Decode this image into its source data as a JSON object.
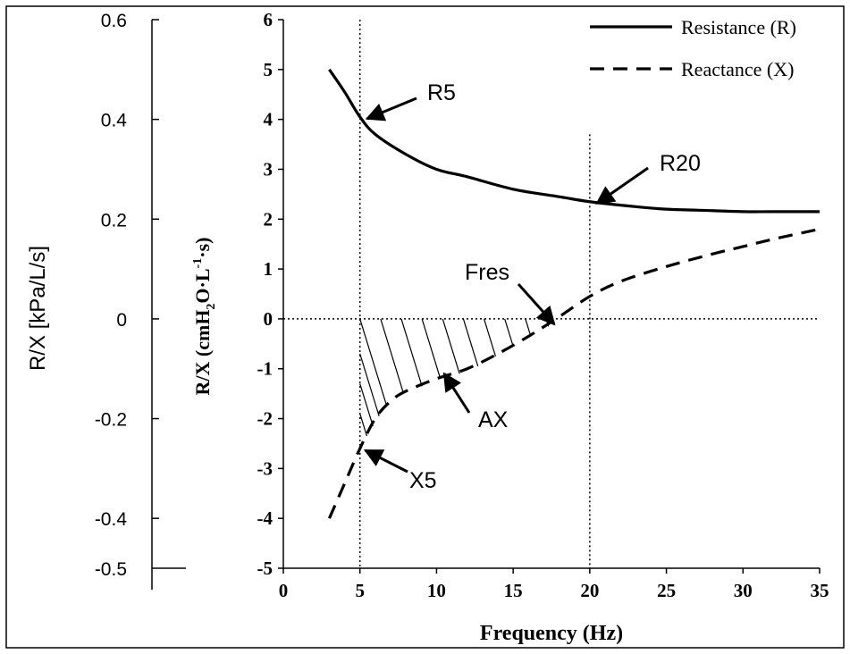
{
  "chart_data": {
    "type": "line",
    "xlabel": "Frequency (Hz)",
    "ylabel_main": "R/X (cmH2O·L-1·s)",
    "ylabel_main_parts": {
      "a": "R/X (cmH",
      "b": "2",
      "c": "O·L",
      "d": "-1",
      "e": "·s)"
    },
    "ylabel_secondary": "R/X [kPa/L/s]",
    "xlim": [
      0,
      35
    ],
    "ylim": [
      -5,
      6
    ],
    "xticks": [
      "0",
      "5",
      "10",
      "15",
      "20",
      "25",
      "30",
      "35"
    ],
    "yticks": [
      "-5",
      "-4",
      "-3",
      "-2",
      "-1",
      "0",
      "1",
      "2",
      "3",
      "4",
      "5",
      "6"
    ],
    "secondary_ylim": [
      -0.5,
      0.6
    ],
    "secondary_yticks": [
      {
        "value": 0.6,
        "label": "0.6"
      },
      {
        "value": 0.4,
        "label": "0.4"
      },
      {
        "value": 0.2,
        "label": "0.2"
      },
      {
        "value": 0,
        "label": "0"
      },
      {
        "value": -0.2,
        "label": "-0.2"
      },
      {
        "value": -0.4,
        "label": "-0.4"
      },
      {
        "value": -0.5,
        "label": "-0.5"
      }
    ],
    "series": [
      {
        "name": "Resistance (R)",
        "style": "solid",
        "x": [
          3,
          4,
          5,
          6,
          8,
          10,
          12,
          15,
          18,
          20,
          23,
          25,
          28,
          30,
          32,
          35
        ],
        "y": [
          5.0,
          4.55,
          4.05,
          3.7,
          3.3,
          3.0,
          2.85,
          2.6,
          2.45,
          2.35,
          2.25,
          2.2,
          2.17,
          2.15,
          2.15,
          2.15
        ]
      },
      {
        "name": "Reactance (X)",
        "style": "dashed",
        "x": [
          3,
          4,
          5,
          6,
          7,
          8,
          10,
          12,
          14,
          16,
          17.8,
          20,
          22,
          25,
          28,
          30,
          32,
          35
        ],
        "y": [
          -4.0,
          -3.3,
          -2.6,
          -2.0,
          -1.65,
          -1.45,
          -1.2,
          -1.0,
          -0.7,
          -0.35,
          0.0,
          0.45,
          0.75,
          1.05,
          1.3,
          1.45,
          1.6,
          1.8
        ]
      }
    ],
    "reference_lines": {
      "vertical_x": [
        5,
        20
      ],
      "horizontal_y": [
        0
      ]
    },
    "shaded_area": {
      "label": "AX",
      "x_from": 5,
      "x_to": 17.8
    },
    "annotations": [
      {
        "text": "R5",
        "target": [
          5,
          4.05
        ]
      },
      {
        "text": "R20",
        "target": [
          20,
          2.35
        ]
      },
      {
        "text": "Fres",
        "target": [
          17.8,
          0
        ]
      },
      {
        "text": "AX",
        "target": [
          10.5,
          -1.1
        ]
      },
      {
        "text": "X5",
        "target": [
          5,
          -2.6
        ]
      }
    ],
    "legend_position": "top-right",
    "grid": false
  }
}
